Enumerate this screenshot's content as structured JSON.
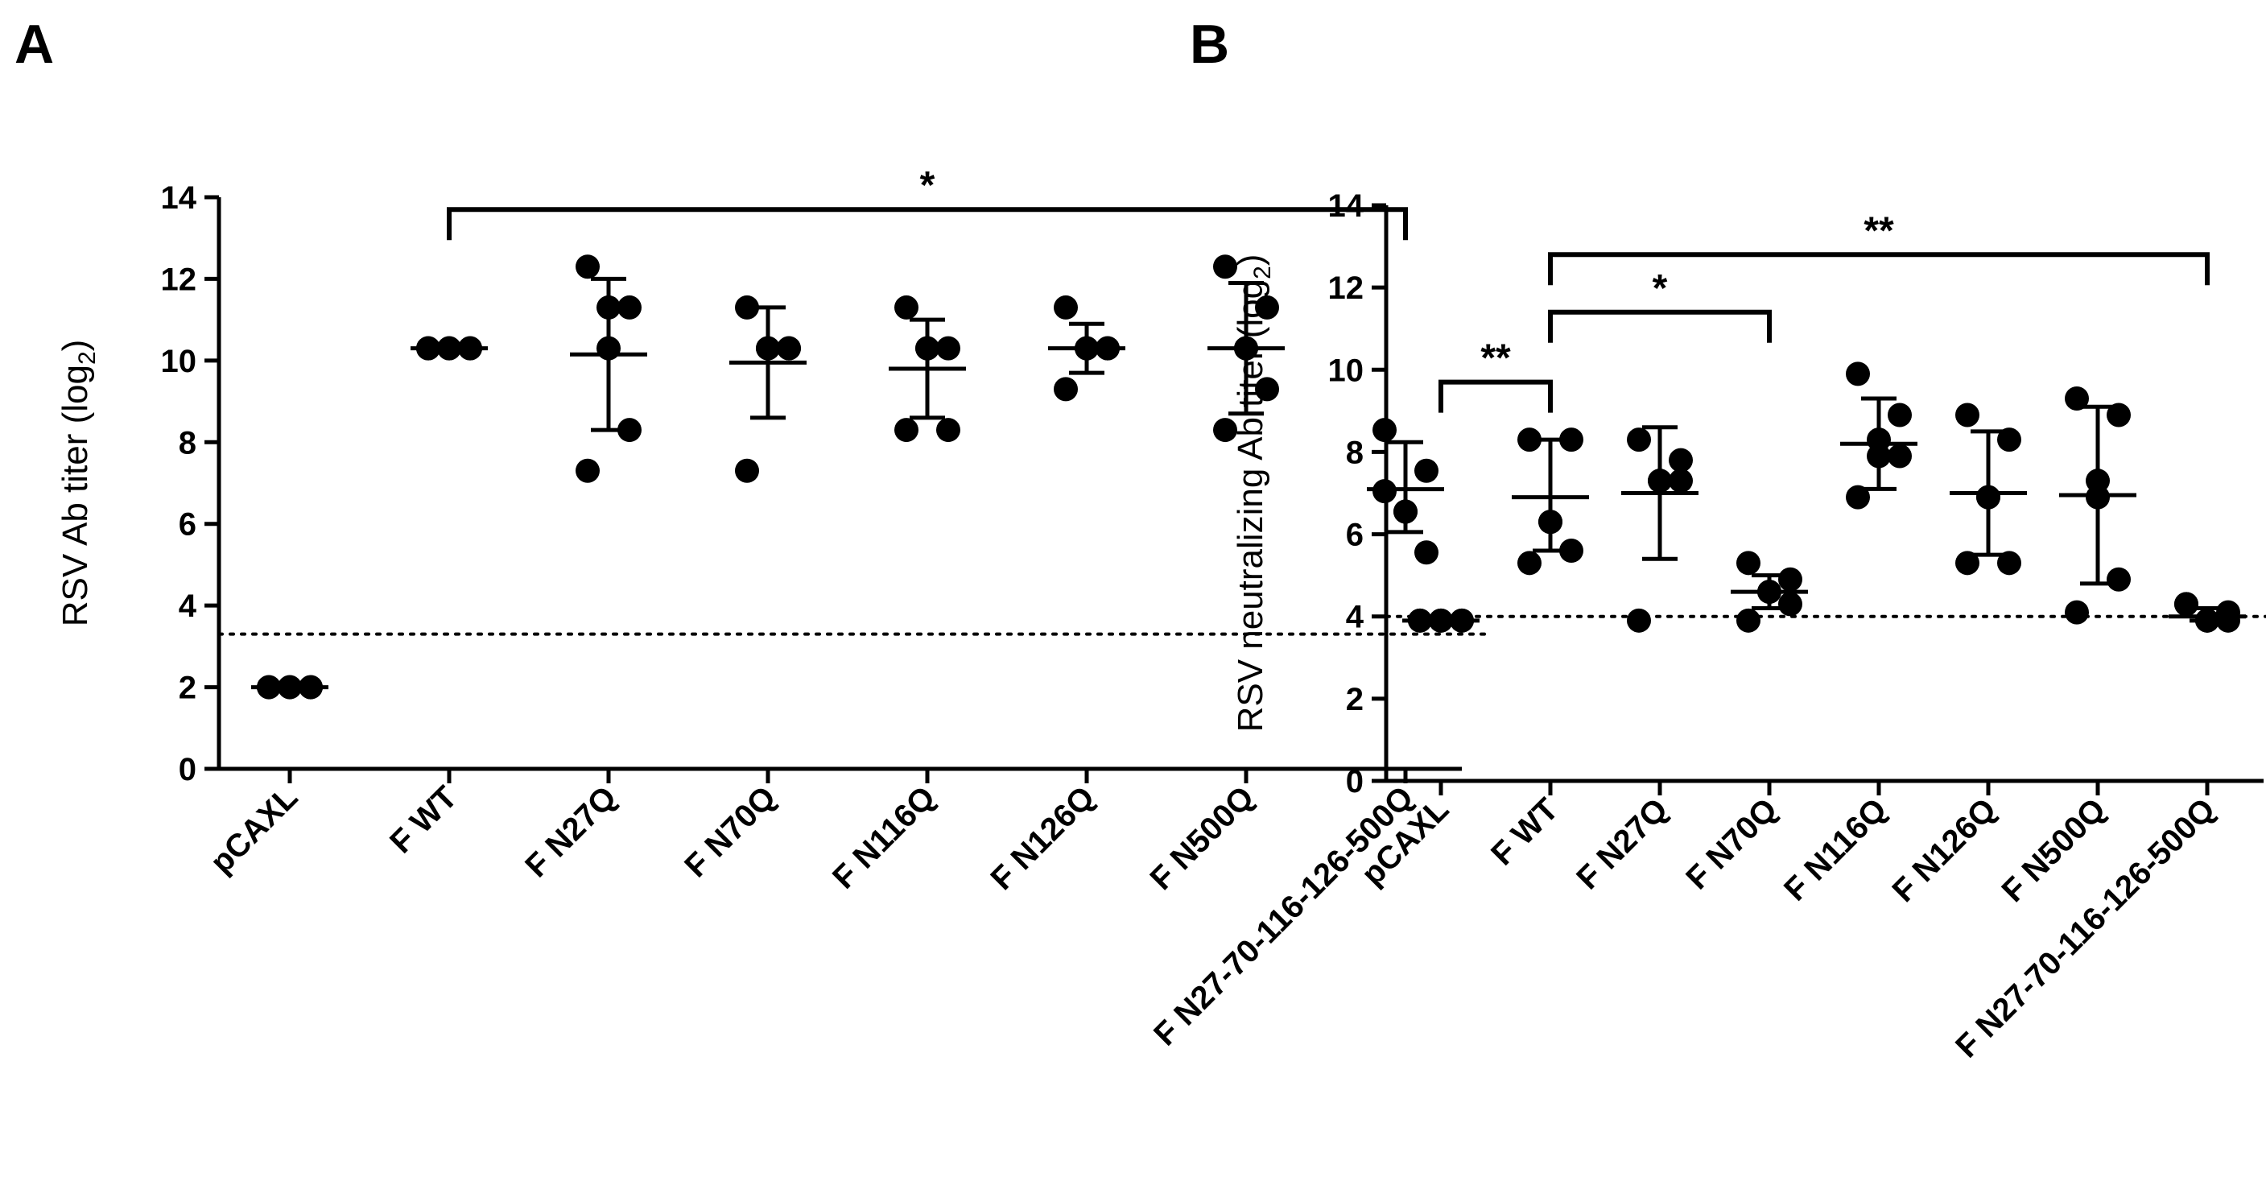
{
  "chart_data": [
    {
      "panel": "A",
      "type": "scatter",
      "ylabel": "RSV Ab titer (log",
      "ylabel_sub": "2",
      "ylabel_close": ")",
      "ylim": [
        0,
        14
      ],
      "yticks": [
        0,
        2,
        4,
        6,
        8,
        10,
        12,
        14
      ],
      "categories": [
        "pCAXL",
        "F WT",
        "F N27Q",
        "F N70Q",
        "F N116Q",
        "F N126Q",
        "F N500Q",
        "F N27-70-116-126-500Q"
      ],
      "points": [
        [
          2.0,
          2.0,
          2.0,
          2.0,
          2.0,
          2.0
        ],
        [
          10.3,
          10.3,
          10.3,
          10.3,
          10.3,
          10.3
        ],
        [
          12.3,
          11.3,
          10.3,
          8.3,
          7.3,
          11.3
        ],
        [
          11.3,
          10.3,
          10.3,
          10.3,
          7.3,
          10.3
        ],
        [
          11.3,
          10.3,
          10.3,
          8.3,
          8.3,
          10.3
        ],
        [
          11.3,
          10.3,
          10.3,
          10.3,
          9.3,
          10.3
        ],
        [
          12.3,
          11.3,
          10.3,
          9.3,
          8.3,
          10.3
        ],
        [
          8.3,
          7.3,
          6.3,
          5.3,
          6.8,
          6.3
        ]
      ],
      "means": [
        2.0,
        10.3,
        10.15,
        9.95,
        9.8,
        10.3,
        10.3,
        6.85
      ],
      "sd_low": [
        2.0,
        10.3,
        8.3,
        8.6,
        8.6,
        9.7,
        8.7,
        5.8
      ],
      "sd_high": [
        2.0,
        10.3,
        12.0,
        11.3,
        11.0,
        10.9,
        11.9,
        8.0
      ],
      "detection_limit": 3.3,
      "significance": [
        {
          "from": 1,
          "to": 7,
          "label": "*",
          "level": 13.7
        }
      ]
    },
    {
      "panel": "B",
      "type": "scatter",
      "ylabel": "RSV neutralizing Ab titer (log",
      "ylabel_sub": "2",
      "ylabel_close": ")",
      "ylim": [
        0,
        14
      ],
      "yticks": [
        0,
        2,
        4,
        6,
        8,
        10,
        12,
        14
      ],
      "categories": [
        "pCAXL",
        "F WT",
        "F N27Q",
        "F N70Q",
        "F N116Q",
        "F N126Q",
        "F N500Q",
        "F N27-70-116-126-500Q"
      ],
      "points": [
        [
          3.9,
          3.9,
          3.9,
          3.9,
          3.9,
          3.9
        ],
        [
          8.3,
          8.3,
          6.3,
          5.6,
          5.3,
          6.3
        ],
        [
          8.3,
          7.3,
          7.3,
          7.8,
          3.9,
          7.3
        ],
        [
          5.3,
          4.9,
          4.6,
          4.3,
          3.9,
          4.6
        ],
        [
          9.9,
          8.9,
          7.9,
          7.9,
          6.9,
          8.3
        ],
        [
          8.9,
          8.3,
          6.9,
          5.3,
          5.3,
          6.9
        ],
        [
          9.3,
          8.9,
          6.9,
          4.9,
          4.1,
          7.3
        ],
        [
          4.3,
          4.1,
          3.9,
          3.9,
          4.3,
          3.9
        ]
      ],
      "means": [
        3.9,
        6.9,
        7.0,
        4.6,
        8.2,
        7.0,
        6.95,
        4.0
      ],
      "sd_low": [
        3.9,
        5.6,
        5.4,
        4.2,
        7.1,
        5.5,
        4.8,
        3.9
      ],
      "sd_high": [
        3.9,
        8.3,
        8.6,
        5.0,
        9.3,
        8.5,
        9.1,
        4.2
      ],
      "detection_limit": 4.0,
      "significance": [
        {
          "from": 0,
          "to": 1,
          "label": "**",
          "level": 9.7
        },
        {
          "from": 1,
          "to": 3,
          "label": "*",
          "level": 11.4
        },
        {
          "from": 1,
          "to": 7,
          "label": "**",
          "level": 12.8
        }
      ]
    }
  ]
}
